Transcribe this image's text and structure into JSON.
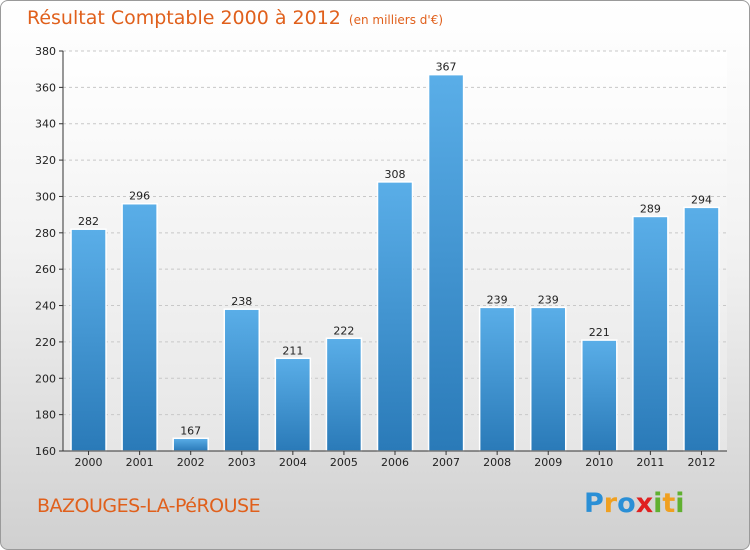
{
  "title": "Résultat Comptable 2000 à 2012",
  "subtitle": "(en milliers d'€)",
  "commune": "BAZOUGES-LA-PéROUSE",
  "logo": {
    "letters": [
      "P",
      "r",
      "o",
      "x",
      "i",
      "t",
      "i"
    ],
    "colors": [
      "#2a8fd6",
      "#f0a020",
      "#2a8fd6",
      "#e02020",
      "#60b030",
      "#f0a020",
      "#60b030"
    ]
  },
  "colors": {
    "bar_light": "#5aaee8",
    "bar_dark": "#2a7ab8",
    "title": "#e0601c"
  },
  "chart_data": {
    "type": "bar",
    "title": "Résultat Comptable 2000 à 2012",
    "xlabel": "",
    "ylabel": "",
    "categories": [
      "2000",
      "2001",
      "2002",
      "2003",
      "2004",
      "2005",
      "2006",
      "2007",
      "2008",
      "2009",
      "2010",
      "2011",
      "2012"
    ],
    "values": [
      282,
      296,
      167,
      238,
      211,
      222,
      308,
      367,
      239,
      239,
      221,
      289,
      294
    ],
    "ylim": [
      160,
      380
    ],
    "yticks": [
      160,
      180,
      200,
      220,
      240,
      260,
      280,
      300,
      320,
      340,
      360,
      380
    ],
    "grid": true
  }
}
